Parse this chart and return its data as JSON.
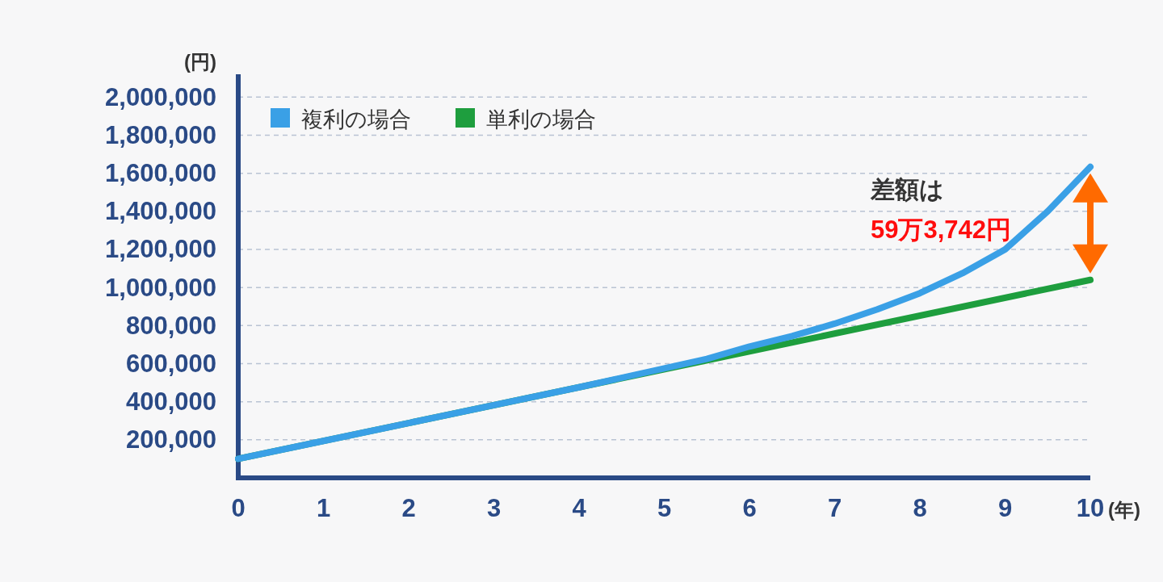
{
  "chart_data": {
    "type": "line",
    "xlabel": "(年)",
    "ylabel": "(円)",
    "x": [
      0,
      1,
      2,
      3,
      4,
      5,
      5.5,
      6,
      6.5,
      7,
      7.5,
      8,
      8.5,
      9,
      9.5,
      10
    ],
    "series": [
      {
        "name": "複利の場合",
        "color": "#3aa0e6",
        "values": [
          100000,
          194000,
          288000,
          382000,
          476000,
          575000,
          625000,
          690000,
          745000,
          810000,
          885000,
          970000,
          1075000,
          1200000,
          1400000,
          1633742
        ]
      },
      {
        "name": "単利の場合",
        "color": "#1e9e3e",
        "x": [
          0,
          10
        ],
        "values": [
          100000,
          1040000
        ]
      }
    ],
    "xlim": [
      0,
      10
    ],
    "ylim": [
      0,
      2120000
    ],
    "xticks": [
      0,
      1,
      2,
      3,
      4,
      5,
      6,
      7,
      8,
      9,
      10
    ],
    "yticks": [
      {
        "value": 200000,
        "label": "200,000"
      },
      {
        "value": 400000,
        "label": "400,000"
      },
      {
        "value": 600000,
        "label": "600,000"
      },
      {
        "value": 800000,
        "label": "800,000"
      },
      {
        "value": 1000000,
        "label": "1,000,000"
      },
      {
        "value": 1200000,
        "label": "1,200,000"
      },
      {
        "value": 1400000,
        "label": "1,400,000"
      },
      {
        "value": 1600000,
        "label": "1,600,000"
      },
      {
        "value": 1800000,
        "label": "1,800,000"
      },
      {
        "value": 2000000,
        "label": "2,000,000"
      }
    ],
    "grid": "y",
    "legend": "top left",
    "marker": "none",
    "line_style": "solid",
    "annotations": [
      "差額は",
      "59万3,742円"
    ]
  }
}
